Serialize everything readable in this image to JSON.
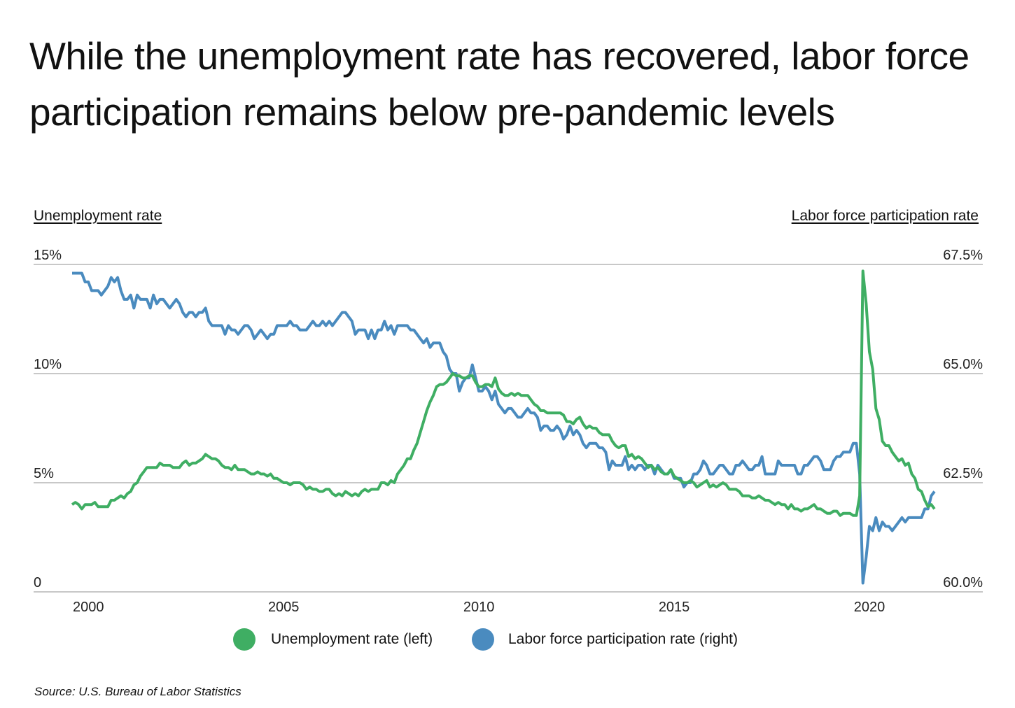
{
  "title": "While the unemployment rate has recovered, labor force participation remains below pre-pandemic levels",
  "source": "Source:  U.S. Bureau of Labor Statistics",
  "colors": {
    "unemployment": "#3fae63",
    "participation": "#4a8bbf",
    "grid": "#c8c8c8"
  },
  "chart_data": {
    "type": "line",
    "title": "While the unemployment rate has recovered, labor force participation remains below pre-pandemic levels",
    "x_start": "2000-01",
    "x_end": "2022-02",
    "x_frequency": "monthly",
    "x_ticks": [
      "2000",
      "2005",
      "2010",
      "2015",
      "2020"
    ],
    "y_left": {
      "label": "Unemployment rate",
      "range": [
        0,
        15
      ],
      "ticks": [
        "0",
        "5%",
        "10%",
        "15%"
      ],
      "tick_values": [
        0,
        5,
        10,
        15
      ]
    },
    "y_right": {
      "label": "Labor force participation rate",
      "range": [
        60,
        67.5
      ],
      "ticks": [
        "60.0%",
        "62.5%",
        "65.0%",
        "67.5%"
      ],
      "tick_values": [
        60,
        62.5,
        65,
        67.5
      ]
    },
    "grid": "horizontal",
    "legend_position": "bottom",
    "series": [
      {
        "name": "Unemployment rate (left)",
        "axis": "left",
        "color": "#3fae63",
        "values": [
          4.0,
          4.1,
          4.0,
          3.8,
          4.0,
          4.0,
          4.0,
          4.1,
          3.9,
          3.9,
          3.9,
          3.9,
          4.2,
          4.2,
          4.3,
          4.4,
          4.3,
          4.5,
          4.6,
          4.9,
          5.0,
          5.3,
          5.5,
          5.7,
          5.7,
          5.7,
          5.7,
          5.9,
          5.8,
          5.8,
          5.8,
          5.7,
          5.7,
          5.7,
          5.9,
          6.0,
          5.8,
          5.9,
          5.9,
          6.0,
          6.1,
          6.3,
          6.2,
          6.1,
          6.1,
          6.0,
          5.8,
          5.7,
          5.7,
          5.6,
          5.8,
          5.6,
          5.6,
          5.6,
          5.5,
          5.4,
          5.4,
          5.5,
          5.4,
          5.4,
          5.3,
          5.4,
          5.2,
          5.2,
          5.1,
          5.0,
          5.0,
          4.9,
          5.0,
          5.0,
          5.0,
          4.9,
          4.7,
          4.8,
          4.7,
          4.7,
          4.6,
          4.6,
          4.7,
          4.7,
          4.5,
          4.4,
          4.5,
          4.4,
          4.6,
          4.5,
          4.4,
          4.5,
          4.4,
          4.6,
          4.7,
          4.6,
          4.7,
          4.7,
          4.7,
          5.0,
          5.0,
          4.9,
          5.1,
          5.0,
          5.4,
          5.6,
          5.8,
          6.1,
          6.1,
          6.5,
          6.8,
          7.3,
          7.8,
          8.3,
          8.7,
          9.0,
          9.4,
          9.5,
          9.5,
          9.6,
          9.8,
          10.0,
          9.9,
          9.9,
          9.8,
          9.8,
          9.9,
          9.9,
          9.6,
          9.4,
          9.4,
          9.5,
          9.5,
          9.4,
          9.8,
          9.3,
          9.1,
          9.0,
          9.0,
          9.1,
          9.0,
          9.1,
          9.0,
          9.0,
          9.0,
          8.8,
          8.6,
          8.5,
          8.3,
          8.3,
          8.2,
          8.2,
          8.2,
          8.2,
          8.2,
          8.1,
          7.8,
          7.8,
          7.7,
          7.9,
          8.0,
          7.7,
          7.5,
          7.6,
          7.5,
          7.5,
          7.3,
          7.2,
          7.2,
          7.2,
          6.9,
          6.7,
          6.6,
          6.7,
          6.7,
          6.2,
          6.3,
          6.1,
          6.2,
          6.1,
          5.9,
          5.7,
          5.8,
          5.6,
          5.7,
          5.5,
          5.4,
          5.4,
          5.6,
          5.3,
          5.2,
          5.1,
          5.0,
          5.0,
          5.1,
          5.0,
          4.8,
          4.9,
          5.0,
          5.1,
          4.8,
          4.9,
          4.8,
          4.9,
          5.0,
          4.9,
          4.7,
          4.7,
          4.7,
          4.6,
          4.4,
          4.4,
          4.4,
          4.3,
          4.3,
          4.4,
          4.3,
          4.2,
          4.2,
          4.1,
          4.0,
          4.1,
          4.0,
          4.0,
          3.8,
          4.0,
          3.8,
          3.8,
          3.7,
          3.8,
          3.8,
          3.9,
          4.0,
          3.8,
          3.8,
          3.7,
          3.6,
          3.6,
          3.7,
          3.7,
          3.5,
          3.6,
          3.6,
          3.6,
          3.5,
          3.5,
          4.4,
          14.7,
          13.2,
          11.0,
          10.2,
          8.4,
          7.9,
          6.9,
          6.7,
          6.7,
          6.4,
          6.2,
          6.0,
          6.1,
          5.8,
          5.9,
          5.4,
          5.2,
          4.7,
          4.6,
          4.2,
          3.9,
          4.0,
          3.8
        ]
      },
      {
        "name": "Labor force participation rate (right)",
        "axis": "right",
        "color": "#4a8bbf",
        "values": [
          67.3,
          67.3,
          67.3,
          67.3,
          67.1,
          67.1,
          66.9,
          66.9,
          66.9,
          66.8,
          66.9,
          67.0,
          67.2,
          67.1,
          67.2,
          66.9,
          66.7,
          66.7,
          66.8,
          66.5,
          66.8,
          66.7,
          66.7,
          66.7,
          66.5,
          66.8,
          66.6,
          66.7,
          66.7,
          66.6,
          66.5,
          66.6,
          66.7,
          66.6,
          66.4,
          66.3,
          66.4,
          66.4,
          66.3,
          66.4,
          66.4,
          66.5,
          66.2,
          66.1,
          66.1,
          66.1,
          66.1,
          65.9,
          66.1,
          66.0,
          66.0,
          65.9,
          66.0,
          66.1,
          66.1,
          66.0,
          65.8,
          65.9,
          66.0,
          65.9,
          65.8,
          65.9,
          65.9,
          66.1,
          66.1,
          66.1,
          66.1,
          66.2,
          66.1,
          66.1,
          66.0,
          66.0,
          66.0,
          66.1,
          66.2,
          66.1,
          66.1,
          66.2,
          66.1,
          66.2,
          66.1,
          66.2,
          66.3,
          66.4,
          66.4,
          66.3,
          66.2,
          65.9,
          66.0,
          66.0,
          66.0,
          65.8,
          66.0,
          65.8,
          66.0,
          66.0,
          66.2,
          66.0,
          66.1,
          65.9,
          66.1,
          66.1,
          66.1,
          66.1,
          66.0,
          66.0,
          65.9,
          65.8,
          65.7,
          65.8,
          65.6,
          65.7,
          65.7,
          65.7,
          65.5,
          65.4,
          65.1,
          65.0,
          65.0,
          64.6,
          64.8,
          64.9,
          64.9,
          65.2,
          64.9,
          64.6,
          64.6,
          64.7,
          64.6,
          64.4,
          64.6,
          64.3,
          64.2,
          64.1,
          64.2,
          64.2,
          64.1,
          64.0,
          64.0,
          64.1,
          64.2,
          64.1,
          64.1,
          64.0,
          63.7,
          63.8,
          63.8,
          63.7,
          63.7,
          63.8,
          63.7,
          63.5,
          63.6,
          63.8,
          63.6,
          63.7,
          63.6,
          63.4,
          63.3,
          63.4,
          63.4,
          63.4,
          63.3,
          63.3,
          63.2,
          62.8,
          63.0,
          62.9,
          62.9,
          62.9,
          63.1,
          62.8,
          62.9,
          62.8,
          62.9,
          62.9,
          62.8,
          62.9,
          62.9,
          62.7,
          62.9,
          62.8,
          62.7,
          62.7,
          62.8,
          62.6,
          62.6,
          62.6,
          62.4,
          62.5,
          62.5,
          62.7,
          62.7,
          62.8,
          63.0,
          62.9,
          62.7,
          62.7,
          62.8,
          62.9,
          62.9,
          62.8,
          62.7,
          62.7,
          62.9,
          62.9,
          63.0,
          62.9,
          62.8,
          62.8,
          62.9,
          62.9,
          63.1,
          62.7,
          62.7,
          62.7,
          62.7,
          63.0,
          62.9,
          62.9,
          62.9,
          62.9,
          62.9,
          62.7,
          62.7,
          62.9,
          62.9,
          63.0,
          63.1,
          63.1,
          63.0,
          62.8,
          62.8,
          62.8,
          63.0,
          63.1,
          63.1,
          63.2,
          63.2,
          63.2,
          63.4,
          63.4,
          62.7,
          60.2,
          60.8,
          61.5,
          61.4,
          61.7,
          61.4,
          61.6,
          61.5,
          61.5,
          61.4,
          61.5,
          61.6,
          61.7,
          61.6,
          61.7,
          61.7,
          61.7,
          61.7,
          61.7,
          61.9,
          61.9,
          62.2,
          62.3
        ]
      }
    ]
  }
}
